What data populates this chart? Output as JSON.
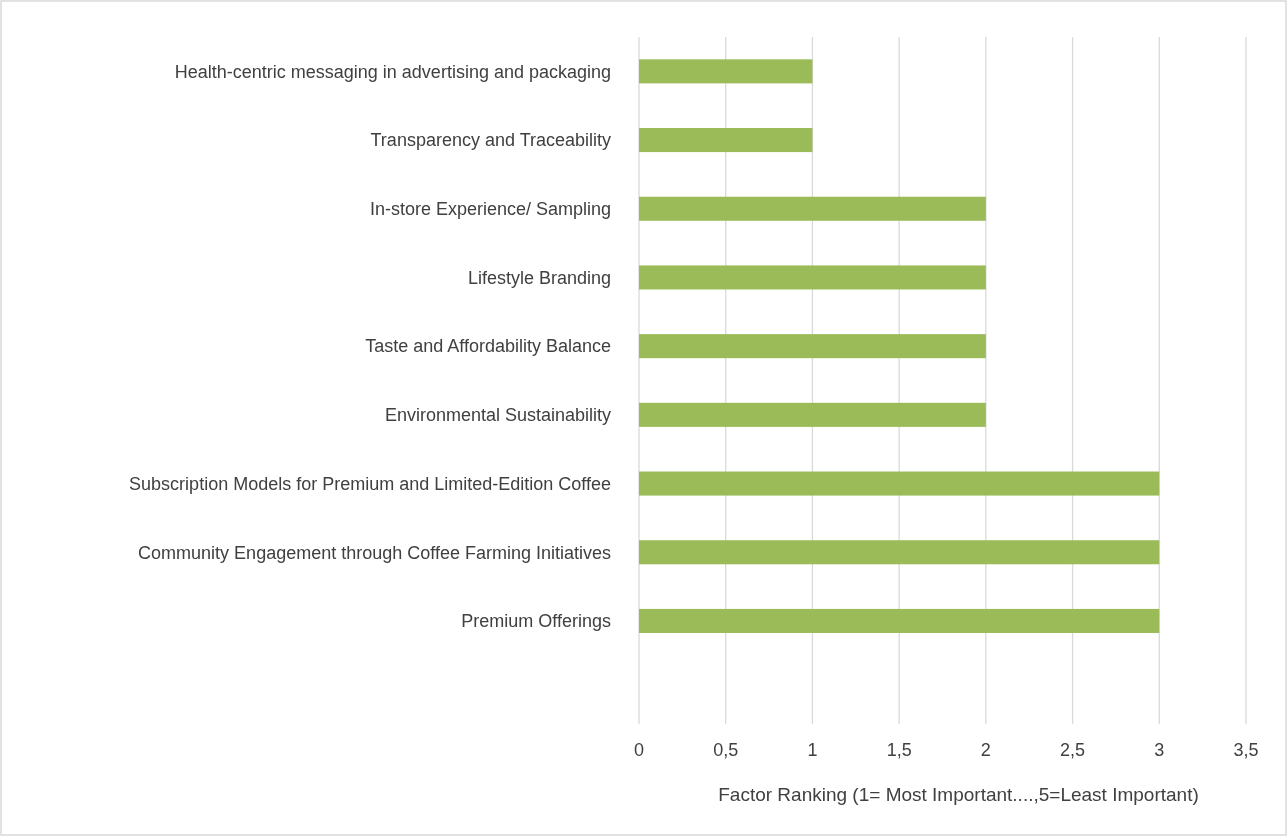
{
  "chart_data": {
    "type": "bar",
    "orientation": "horizontal",
    "xlabel": "Factor Ranking (1= Most Important....,5=Least Important)",
    "categories": [
      "Health-centric messaging in advertising and packaging",
      "Transparency and Traceability",
      "In-store Experience/ Sampling",
      "Lifestyle Branding",
      "Taste and Affordability Balance",
      "Environmental Sustainability",
      "Subscription Models for Premium and Limited-Edition Coffee",
      "Community Engagement through Coffee Farming Initiatives",
      "Premium Offerings",
      null
    ],
    "values": [
      1,
      1,
      2,
      2,
      2,
      2,
      3,
      3,
      3,
      null
    ],
    "color": "#9bbb59",
    "xlim": [
      0,
      3.5
    ],
    "xticks": [
      0,
      {
        "value": 0.5,
        "label": "0,5"
      },
      1,
      {
        "value": 1.5,
        "label": "1,5"
      },
      2,
      {
        "value": 2.5,
        "label": "2,5"
      },
      3,
      {
        "value": 3.5,
        "label": "3,5"
      }
    ],
    "grid": "x"
  }
}
